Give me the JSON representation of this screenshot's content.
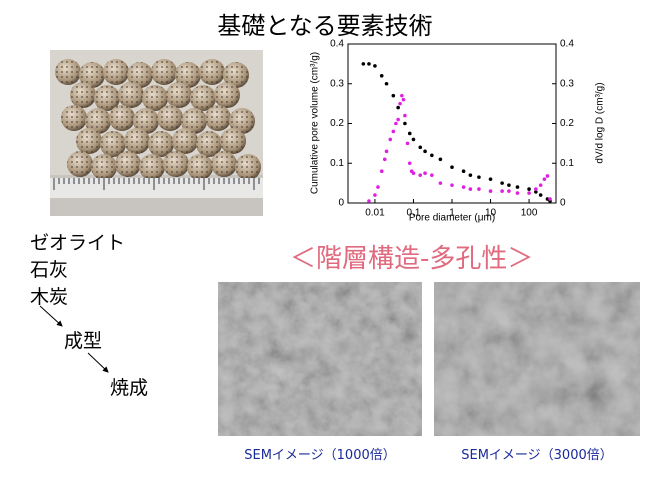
{
  "title": "基礎となる要素技術",
  "chart_data": {
    "type": "scatter",
    "xlabel": "Pore diameter (μm)",
    "ylabel": "Cumulative pore volume (cm³/g)",
    "y2label": "dV/d log D (cm³/g)",
    "log_x": true,
    "xlim": [
      0.002,
      500
    ],
    "xticks": [
      0.01,
      0.1,
      1,
      10,
      100
    ],
    "ylim": [
      0,
      0.4
    ],
    "yticks": [
      0,
      0.1,
      0.2,
      0.3,
      0.4
    ],
    "y2lim": [
      0,
      0.4
    ],
    "y2ticks": [
      0,
      0.1,
      0.2,
      0.3,
      0.4
    ],
    "series": [
      {
        "color": "#000000",
        "x": [
          0.005,
          0.007,
          0.01,
          0.015,
          0.02,
          0.03,
          0.04,
          0.06,
          0.08,
          0.1,
          0.15,
          0.2,
          0.3,
          0.5,
          1,
          2,
          3,
          5,
          10,
          20,
          30,
          50,
          100,
          150,
          200,
          300,
          350
        ],
        "values": [
          0.35,
          0.35,
          0.345,
          0.32,
          0.3,
          0.27,
          0.24,
          0.2,
          0.175,
          0.16,
          0.14,
          0.13,
          0.12,
          0.11,
          0.09,
          0.08,
          0.07,
          0.065,
          0.06,
          0.05,
          0.045,
          0.04,
          0.035,
          0.028,
          0.02,
          0.01,
          0.005
        ]
      },
      {
        "color": "#e020e0",
        "axis": "y2",
        "x": [
          0.007,
          0.01,
          0.012,
          0.015,
          0.018,
          0.02,
          0.025,
          0.03,
          0.035,
          0.04,
          0.045,
          0.05,
          0.055,
          0.06,
          0.07,
          0.08,
          0.09,
          0.1,
          0.15,
          0.2,
          0.3,
          0.5,
          1,
          2,
          3,
          5,
          10,
          20,
          30,
          50,
          100,
          150,
          200,
          250,
          300,
          350
        ],
        "values": [
          0.005,
          0.02,
          0.04,
          0.08,
          0.11,
          0.13,
          0.16,
          0.18,
          0.2,
          0.21,
          0.25,
          0.27,
          0.26,
          0.22,
          0.15,
          0.1,
          0.08,
          0.075,
          0.07,
          0.075,
          0.07,
          0.05,
          0.045,
          0.04,
          0.035,
          0.035,
          0.03,
          0.03,
          0.03,
          0.025,
          0.025,
          0.035,
          0.045,
          0.06,
          0.068,
          0.01
        ]
      }
    ]
  },
  "materials": [
    "ゼオライト",
    "石灰",
    "木炭"
  ],
  "steps": [
    "成型",
    "焼成"
  ],
  "subtitle": "＜階層構造-多孔性＞",
  "sem_captions": [
    "SEMイメージ（1000倍）",
    "SEMイメージ（3000倍）"
  ]
}
